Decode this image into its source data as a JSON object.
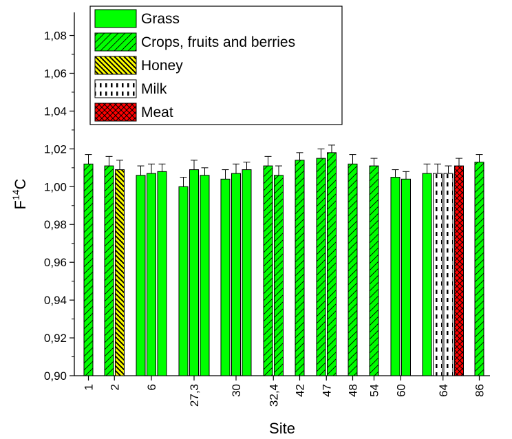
{
  "chart_data": {
    "type": "bar",
    "xlabel": "Site",
    "ylabel": "F14C",
    "ylabel_main": "F",
    "ylabel_sup": "14",
    "ylabel_tail": "C",
    "ylim": [
      0.9,
      1.09
    ],
    "y_ticks": [
      "0,90",
      "0,92",
      "0,94",
      "0,96",
      "0,98",
      "1,00",
      "1,02",
      "1,04",
      "1,06",
      "1,08"
    ],
    "y_tick_values": [
      0.9,
      0.92,
      0.94,
      0.96,
      0.98,
      1.0,
      1.02,
      1.04,
      1.06,
      1.08
    ],
    "legend_placement": "top-left",
    "series": [
      {
        "name": "Grass",
        "key": "grass",
        "color": "#00ff00"
      },
      {
        "name": "Crops, fruits and berries",
        "key": "crops",
        "color": "#00ff00"
      },
      {
        "name": "Honey",
        "key": "honey",
        "color": "#ffff00"
      },
      {
        "name": "Milk",
        "key": "milk",
        "color": "#ffffff"
      },
      {
        "name": "Meat",
        "key": "meat",
        "color": "#ff0000"
      }
    ],
    "sites": [
      {
        "label": "1",
        "bars": [
          {
            "s": "crops",
            "v": 1.012,
            "e": 0.005
          }
        ]
      },
      {
        "label": "2",
        "bars": [
          {
            "s": "crops",
            "v": 1.011,
            "e": 0.005
          },
          {
            "s": "honey",
            "v": 1.009,
            "e": 0.005
          }
        ]
      },
      {
        "label": "6",
        "bars": [
          {
            "s": "grass",
            "v": 1.006,
            "e": 0.005
          },
          {
            "s": "grass",
            "v": 1.007,
            "e": 0.005
          },
          {
            "s": "grass",
            "v": 1.008,
            "e": 0.004
          }
        ]
      },
      {
        "label": "27,3",
        "bars": [
          {
            "s": "grass",
            "v": 1.0,
            "e": 0.005
          },
          {
            "s": "grass",
            "v": 1.009,
            "e": 0.005
          },
          {
            "s": "grass",
            "v": 1.006,
            "e": 0.004
          }
        ]
      },
      {
        "label": "30",
        "bars": [
          {
            "s": "grass",
            "v": 1.004,
            "e": 0.005
          },
          {
            "s": "grass",
            "v": 1.007,
            "e": 0.005
          },
          {
            "s": "grass",
            "v": 1.009,
            "e": 0.004
          }
        ]
      },
      {
        "label": "32,4",
        "bars": [
          {
            "s": "crops",
            "v": 1.011,
            "e": 0.005
          },
          {
            "s": "crops",
            "v": 1.006,
            "e": 0.005
          }
        ]
      },
      {
        "label": "42",
        "bars": [
          {
            "s": "crops",
            "v": 1.014,
            "e": 0.004
          }
        ]
      },
      {
        "label": "47",
        "bars": [
          {
            "s": "crops",
            "v": 1.015,
            "e": 0.005
          },
          {
            "s": "crops",
            "v": 1.018,
            "e": 0.004
          }
        ]
      },
      {
        "label": "48",
        "bars": [
          {
            "s": "crops",
            "v": 1.012,
            "e": 0.005
          }
        ]
      },
      {
        "label": "54",
        "bars": [
          {
            "s": "crops",
            "v": 1.011,
            "e": 0.004
          }
        ]
      },
      {
        "label": "60",
        "bars": [
          {
            "s": "grass",
            "v": 1.005,
            "e": 0.004
          },
          {
            "s": "grass",
            "v": 1.004,
            "e": 0.004
          }
        ]
      },
      {
        "label": "64",
        "bars": [
          {
            "s": "grass",
            "v": 1.007,
            "e": 0.005
          },
          {
            "s": "milk",
            "v": 1.007,
            "e": 0.005
          },
          {
            "s": "milk",
            "v": 1.007,
            "e": 0.004
          },
          {
            "s": "meat",
            "v": 1.011,
            "e": 0.004
          }
        ]
      },
      {
        "label": "86",
        "bars": [
          {
            "s": "crops",
            "v": 1.013,
            "e": 0.004
          }
        ]
      }
    ]
  }
}
